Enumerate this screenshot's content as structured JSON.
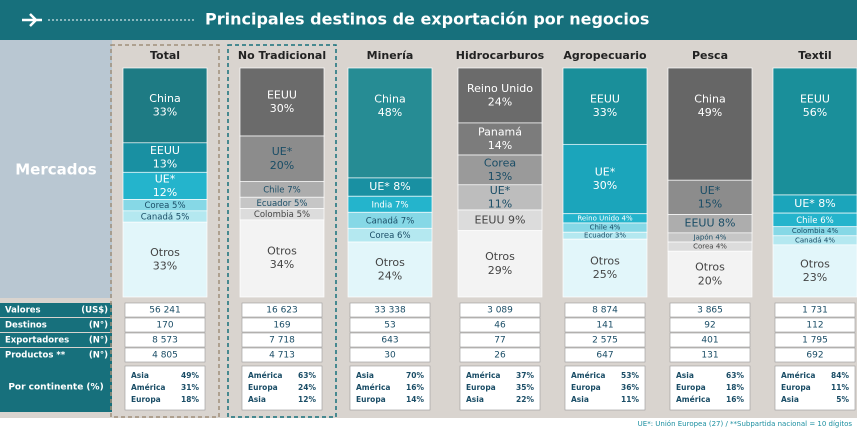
{
  "title": "Principales destinos de exportación por negocios",
  "markets_label": "Mercados",
  "row_headers": [
    {
      "label": "Valores",
      "unit": "(US$)"
    },
    {
      "label": "Destinos",
      "unit": "(N°)"
    },
    {
      "label": "Exportadores",
      "unit": "(N°)"
    },
    {
      "label": "Productos **",
      "unit": "(N°)"
    }
  ],
  "continent_header": "Por continente (%)",
  "footnote": "UE*: Unión Europea (27) / **Subpartida nacional = 10 dígitos",
  "columns": [
    {
      "name": "Total",
      "segments": [
        {
          "name": "China",
          "value": 33,
          "label": "33%",
          "color": "#1e7b84"
        },
        {
          "name": "EEUU",
          "value": 13,
          "label": "13%",
          "color": "#1990a2"
        },
        {
          "name": "UE*",
          "value": 12,
          "label": "12%",
          "color": "#24b4cc"
        },
        {
          "name": "Corea",
          "value": 5,
          "label": "5%",
          "color": "#86d8e6"
        },
        {
          "name": "Canadá",
          "value": 5,
          "label": "5%",
          "color": "#b4e8f0"
        },
        {
          "name": "Otros",
          "value": 33,
          "label": "33%",
          "color": "#e2f6fa"
        }
      ],
      "stats": [
        "56 241",
        "170",
        "8 573",
        "4 805"
      ],
      "continents": [
        {
          "name": "Asia",
          "label": "49%"
        },
        {
          "name": "América",
          "label": "31%"
        },
        {
          "name": "Europa",
          "label": "18%"
        }
      ]
    },
    {
      "name": "No Tradicional",
      "segments": [
        {
          "name": "EEUU",
          "value": 30,
          "label": "30%",
          "color": "#6b6b6b"
        },
        {
          "name": "UE*",
          "value": 20,
          "label": "20%",
          "color": "#8c8c8c"
        },
        {
          "name": "Chile",
          "value": 7,
          "label": "7%",
          "color": "#adadad"
        },
        {
          "name": "Ecuador",
          "value": 5,
          "label": "5%",
          "color": "#c6c6c6"
        },
        {
          "name": "Colombia",
          "value": 5,
          "label": "5%",
          "color": "#dcdcdc"
        },
        {
          "name": "Otros",
          "value": 34,
          "label": "34%",
          "color": "#f3f3f3"
        }
      ],
      "stats": [
        "16 623",
        "169",
        "7 718",
        "4 713"
      ],
      "continents": [
        {
          "name": "América",
          "label": "63%"
        },
        {
          "name": "Europa",
          "label": "24%"
        },
        {
          "name": "Asia",
          "label": "12%"
        }
      ]
    },
    {
      "name": "Minería",
      "segments": [
        {
          "name": "China",
          "value": 48,
          "label": "48%",
          "color": "#268c94"
        },
        {
          "name": "UE*",
          "value": 8,
          "label": "8%",
          "color": "#1990a2"
        },
        {
          "name": "India",
          "value": 7,
          "label": "7%",
          "color": "#24b4cc"
        },
        {
          "name": "Canadá",
          "value": 7,
          "label": "7%",
          "color": "#86d8e6"
        },
        {
          "name": "Corea",
          "value": 6,
          "label": "6%",
          "color": "#b4e8f0"
        },
        {
          "name": "Otros",
          "value": 24,
          "label": "24%",
          "color": "#e2f6fa"
        }
      ],
      "stats": [
        "33 338",
        "53",
        "643",
        "30"
      ],
      "continents": [
        {
          "name": "Asia",
          "label": "70%"
        },
        {
          "name": "América",
          "label": "16%"
        },
        {
          "name": "Europa",
          "label": "14%"
        }
      ]
    },
    {
      "name": "Hidrocarburos",
      "segments": [
        {
          "name": "Reino Unido",
          "value": 24,
          "label": "24%",
          "color": "#6b6b6b"
        },
        {
          "name": "Panamá",
          "value": 14,
          "label": "14%",
          "color": "#7c7c7c"
        },
        {
          "name": "Corea",
          "value": 13,
          "label": "13%",
          "color": "#9a9a9a"
        },
        {
          "name": "UE*",
          "value": 11,
          "label": "11%",
          "color": "#bdbdbd"
        },
        {
          "name": "EEUU",
          "value": 9,
          "label": "9%",
          "color": "#dcdcdc"
        },
        {
          "name": "Otros",
          "value": 29,
          "label": "29%",
          "color": "#f3f3f3"
        }
      ],
      "stats": [
        "3 089",
        "46",
        "77",
        "26"
      ],
      "continents": [
        {
          "name": "América",
          "label": "37%"
        },
        {
          "name": "Europa",
          "label": "35%"
        },
        {
          "name": "Asia",
          "label": "22%"
        }
      ]
    },
    {
      "name": "Agropecuario",
      "segments": [
        {
          "name": "EEUU",
          "value": 33,
          "label": "33%",
          "color": "#1a8f9a"
        },
        {
          "name": "UE*",
          "value": 30,
          "label": "30%",
          "color": "#1ba5bb"
        },
        {
          "name": "Reino Unido",
          "value": 4,
          "label": "4%",
          "color": "#24b4cc"
        },
        {
          "name": "Chile",
          "value": 4,
          "label": "4%",
          "color": "#86d8e6"
        },
        {
          "name": "Ecuador",
          "value": 3,
          "label": "3%",
          "color": "#b4e8f0"
        },
        {
          "name": "Otros",
          "value": 25,
          "label": "25%",
          "color": "#e2f6fa"
        }
      ],
      "stats": [
        "8 874",
        "141",
        "2 575",
        "647"
      ],
      "continents": [
        {
          "name": "América",
          "label": "53%"
        },
        {
          "name": "Europa",
          "label": "36%"
        },
        {
          "name": "Asia",
          "label": "11%"
        }
      ]
    },
    {
      "name": "Pesca",
      "segments": [
        {
          "name": "China",
          "value": 49,
          "label": "49%",
          "color": "#666666"
        },
        {
          "name": "UE*",
          "value": 15,
          "label": "15%",
          "color": "#8c8c8c"
        },
        {
          "name": "EEUU",
          "value": 8,
          "label": "8%",
          "color": "#adadad"
        },
        {
          "name": "Japón",
          "value": 4,
          "label": "4%",
          "color": "#c6c6c6"
        },
        {
          "name": "Corea",
          "value": 4,
          "label": "4%",
          "color": "#dcdcdc"
        },
        {
          "name": "Otros",
          "value": 20,
          "label": "20%",
          "color": "#f3f3f3"
        }
      ],
      "stats": [
        "3 865",
        "92",
        "401",
        "131"
      ],
      "continents": [
        {
          "name": "Asia",
          "label": "63%"
        },
        {
          "name": "Europa",
          "label": "18%"
        },
        {
          "name": "América",
          "label": "16%"
        }
      ]
    },
    {
      "name": "Textil",
      "segments": [
        {
          "name": "EEUU",
          "value": 56,
          "label": "56%",
          "color": "#1a8f9a"
        },
        {
          "name": "UE*",
          "value": 8,
          "label": "8%",
          "color": "#1ba5bb"
        },
        {
          "name": "Chile",
          "value": 6,
          "label": "6%",
          "color": "#24b4cc"
        },
        {
          "name": "Colombia",
          "value": 4,
          "label": "4%",
          "color": "#86d8e6"
        },
        {
          "name": "Canadá",
          "value": 4,
          "label": "4%",
          "color": "#b4e8f0"
        },
        {
          "name": "Otros",
          "value": 23,
          "label": "23%",
          "color": "#e2f6fa"
        }
      ],
      "stats": [
        "1 731",
        "112",
        "1 795",
        "692"
      ],
      "continents": [
        {
          "name": "América",
          "label": "84%"
        },
        {
          "name": "Europa",
          "label": "11%"
        },
        {
          "name": "Asia",
          "label": "5%"
        }
      ]
    }
  ]
}
